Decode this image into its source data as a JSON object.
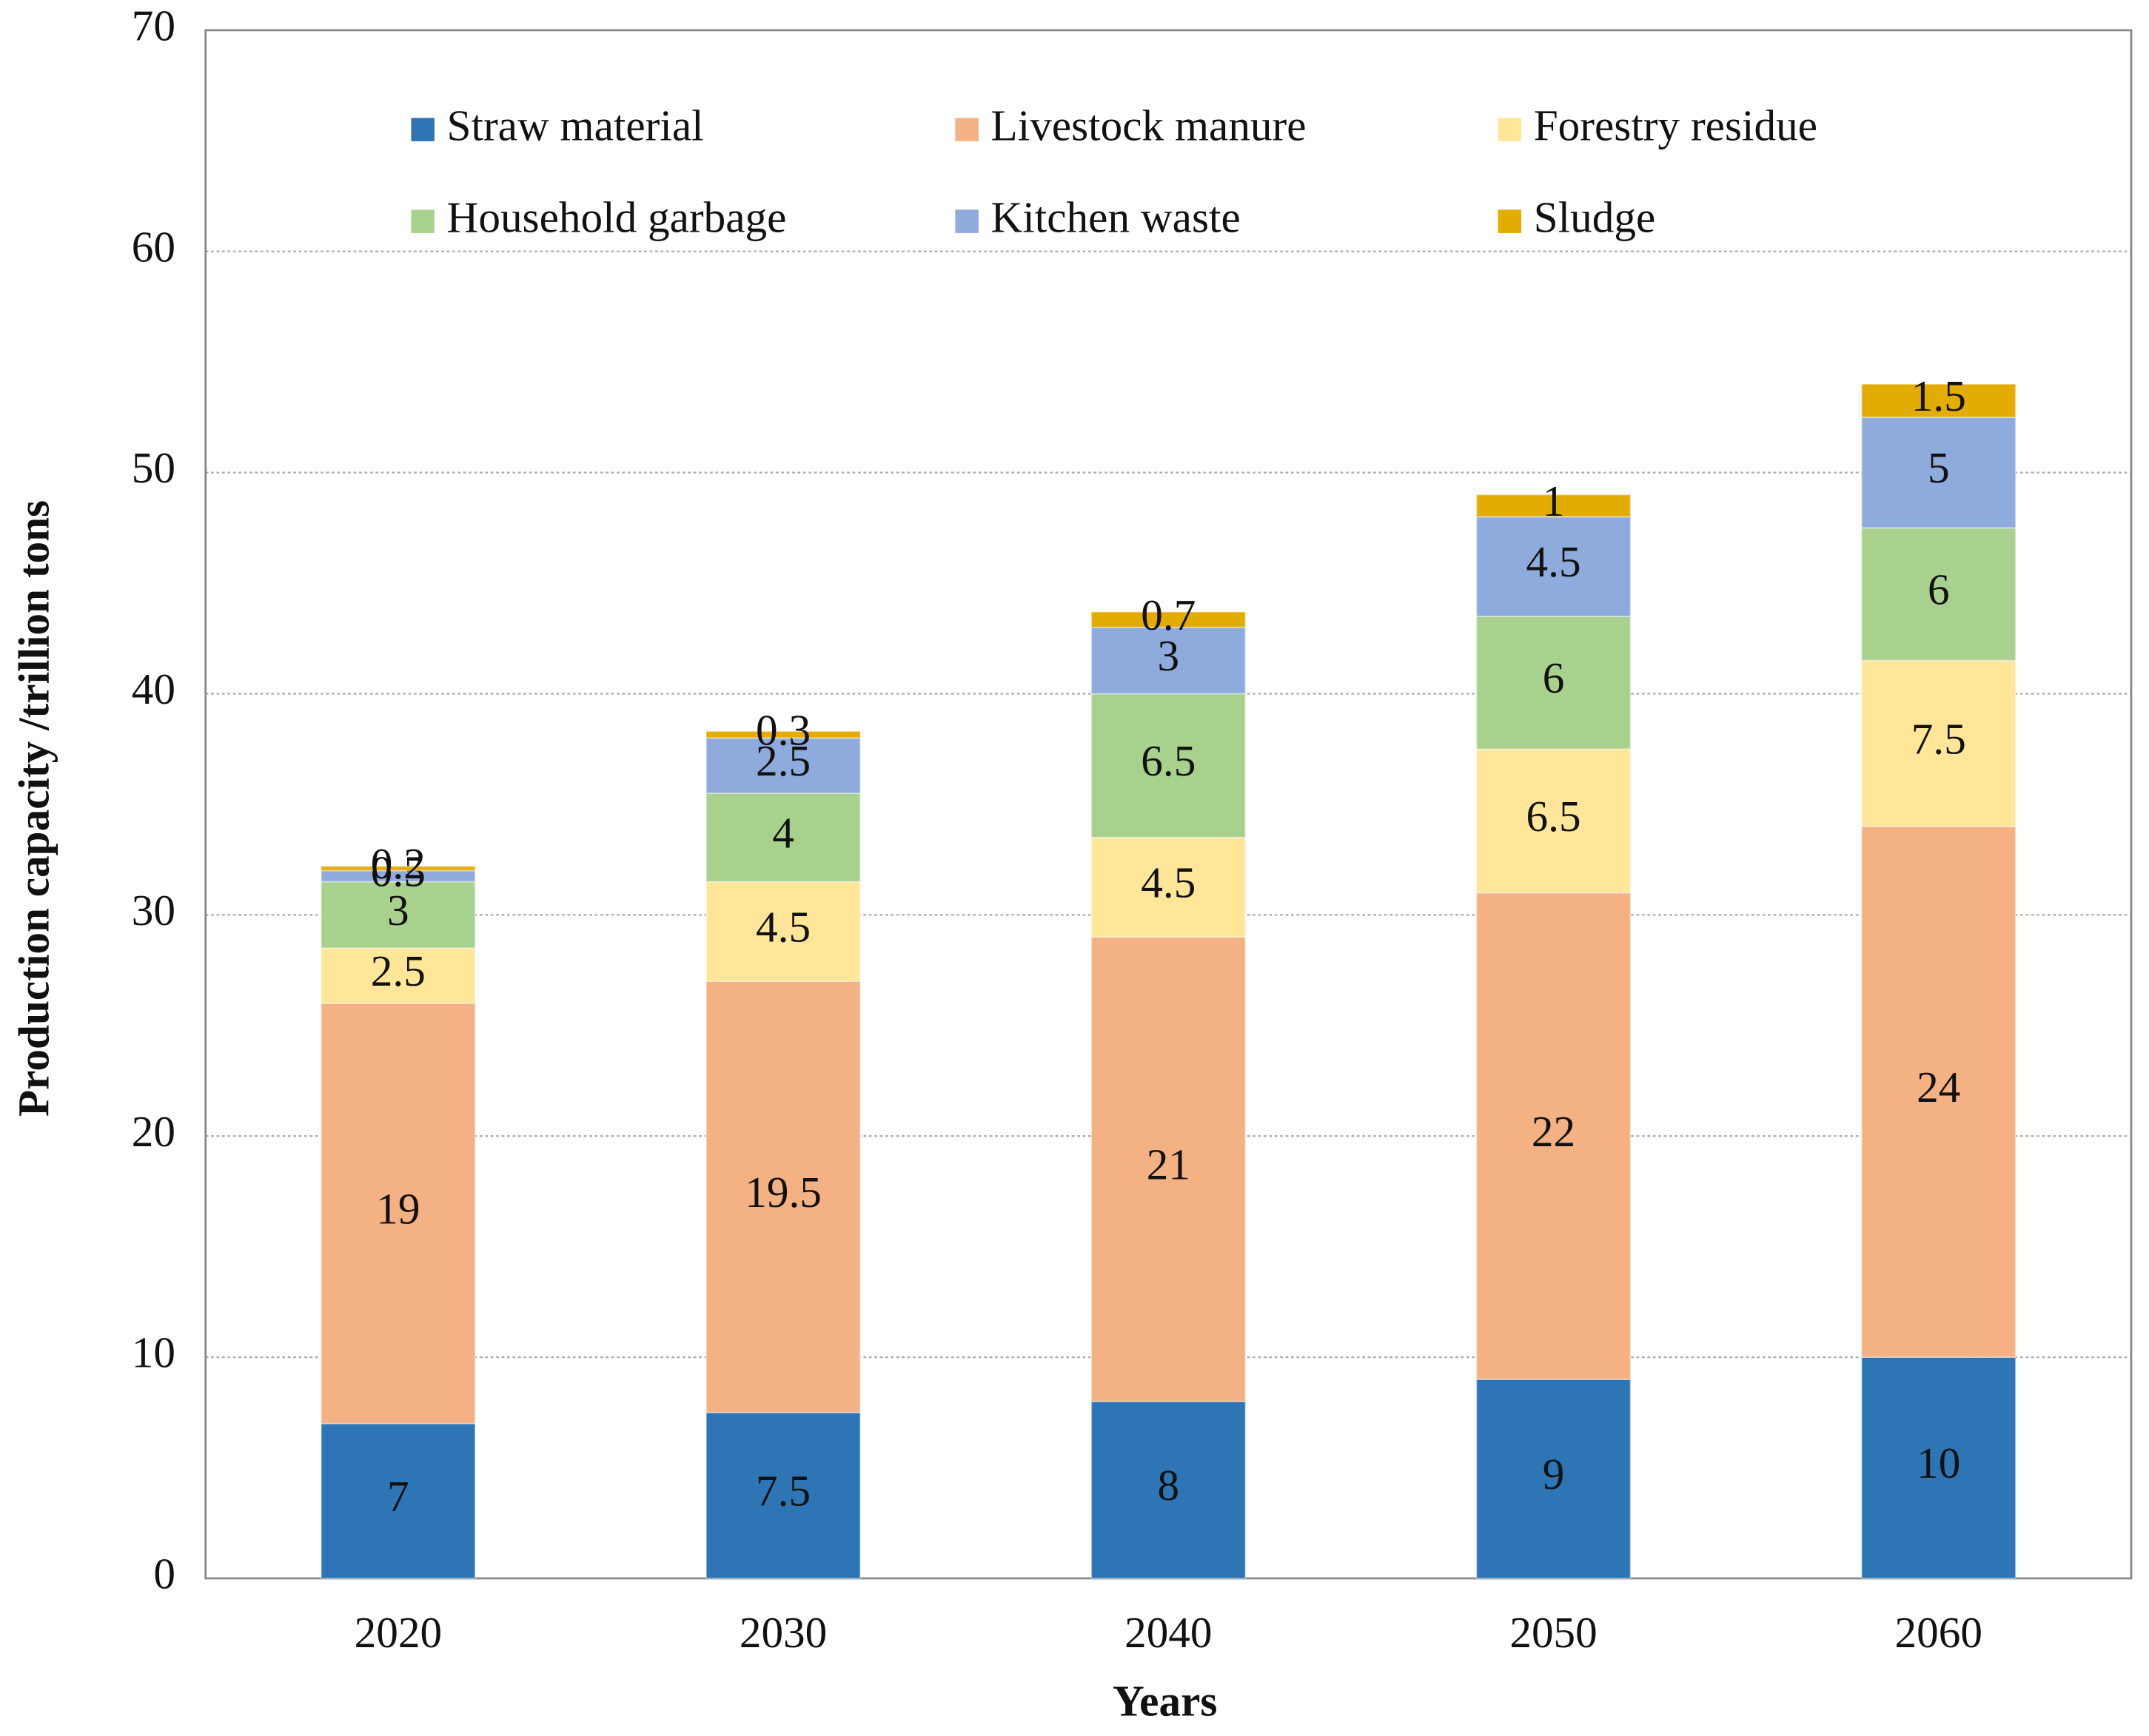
{
  "chart_data": {
    "type": "stacked_bar",
    "x_label": "Years",
    "y_label": "Production capacity /trillion tons",
    "categories": [
      "2020",
      "2030",
      "2040",
      "2050",
      "2060"
    ],
    "series": [
      {
        "name": "Straw material",
        "color": "#2e75b6",
        "values": [
          7,
          7.5,
          8,
          9,
          10
        ]
      },
      {
        "name": "Livestock manure",
        "color": "#f4b183",
        "values": [
          19,
          19.5,
          21,
          22,
          24
        ]
      },
      {
        "name": "Forestry residue",
        "color": "#ffe699",
        "values": [
          2.5,
          4.5,
          4.5,
          6.5,
          7.5
        ]
      },
      {
        "name": "Household garbage",
        "color": "#a9d18e",
        "values": [
          3,
          4,
          6.5,
          6,
          6
        ]
      },
      {
        "name": "Kitchen waste",
        "color": "#8faadc",
        "values": [
          0.5,
          2.5,
          3,
          4.5,
          5
        ]
      },
      {
        "name": "Sludge",
        "color": "#e3ac00",
        "values": [
          0.2,
          0.3,
          0.7,
          1,
          1.5
        ]
      }
    ],
    "ylim": [
      0,
      70
    ],
    "yticks": [
      0,
      10,
      20,
      30,
      40,
      50,
      60,
      70
    ],
    "grid": true,
    "legend": "top"
  }
}
